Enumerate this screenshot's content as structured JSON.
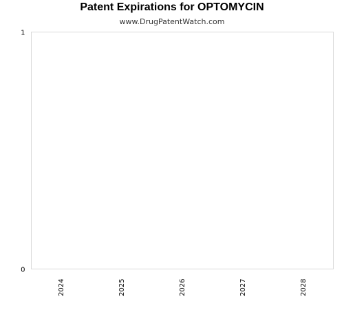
{
  "chart_data": {
    "type": "bar",
    "title": "Patent Expirations for OPTOMYCIN",
    "subtitle": "www.DrugPatentWatch.com",
    "categories": [
      "2024",
      "2025",
      "2026",
      "2027",
      "2028"
    ],
    "values": [
      0,
      0,
      0,
      0,
      0
    ],
    "xlabel": "",
    "ylabel": "",
    "ylim": [
      0,
      1
    ],
    "yticks": [
      "0",
      "1"
    ],
    "grid": false,
    "legend": "none"
  }
}
